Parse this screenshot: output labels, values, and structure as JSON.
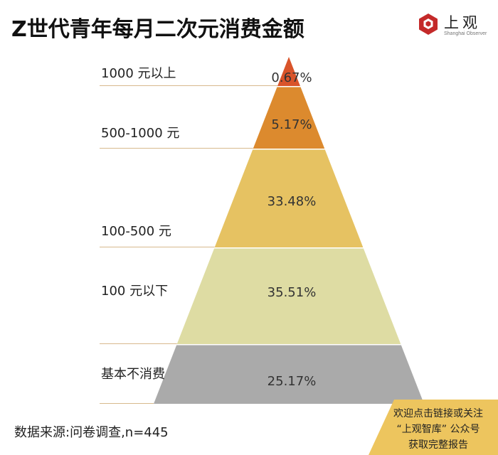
{
  "title": "Z世代青年每月二次元消费金额",
  "logo": {
    "name": "上观",
    "subtitle": "Shanghai Observer"
  },
  "chart_data": {
    "type": "pyramid",
    "unit": "%",
    "series": [
      {
        "category": "1000 元以上",
        "value": 0.67,
        "label": "0.67%",
        "color": "#d9542a"
      },
      {
        "category": "500-1000 元",
        "value": 5.17,
        "label": "5.17%",
        "color": "#dc8a2e"
      },
      {
        "category": "100-500 元",
        "value": 33.48,
        "label": "33.48%",
        "color": "#e6c262"
      },
      {
        "category": "100 元以下",
        "value": 35.51,
        "label": "35.51%",
        "color": "#dedca3"
      },
      {
        "category": "基本不消费",
        "value": 25.17,
        "label": "25.17%",
        "color": "#aaaaaa"
      }
    ]
  },
  "source": "数据来源:问卷调查,n=445",
  "cta": {
    "lines": [
      "欢迎点击链接或关注",
      "“上观智库” 公众号",
      "获取完整报告"
    ],
    "color": "#edc55e"
  }
}
